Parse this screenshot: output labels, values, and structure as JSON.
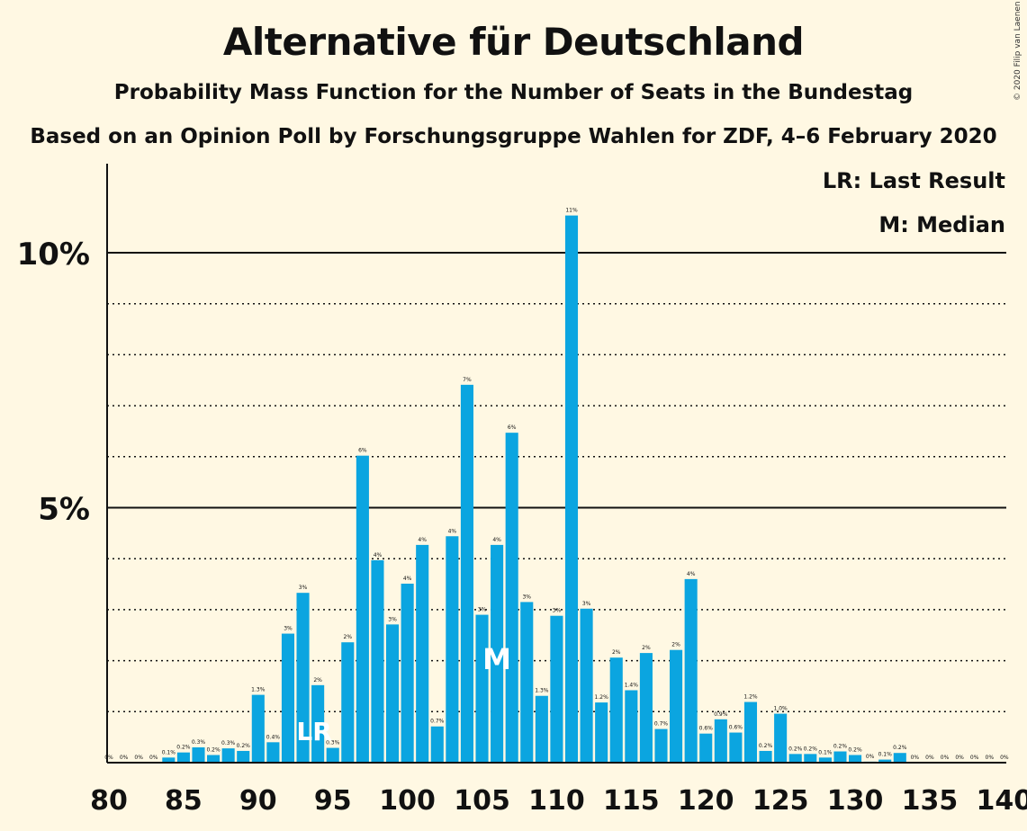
{
  "title": "Alternative für Deutschland",
  "subtitle": "Probability Mass Function for the Number of Seats in the Bundestag",
  "subtitle2": "Based on an Opinion Poll by Forschungsgruppe Wahlen for ZDF, 4–6 February 2020",
  "copyright": "© 2020 Filip van Laenen",
  "legend": {
    "last_result": "LR: Last Result",
    "median": "M: Median"
  },
  "markers": {
    "last_result": "LR",
    "median": "M"
  },
  "colors": {
    "bar": "#0BA5E0",
    "background": "#FFF8E3",
    "axis": "#111111",
    "marker": "#FFFFFF"
  },
  "chart_data": {
    "type": "bar",
    "xlim": [
      80,
      140
    ],
    "ylim": [
      0,
      11.7
    ],
    "x_ticks": [
      80,
      85,
      90,
      95,
      100,
      105,
      110,
      115,
      120,
      125,
      130,
      135,
      140
    ],
    "y_ticks": [
      {
        "value": 5,
        "label": "5%"
      },
      {
        "value": 10,
        "label": "10%"
      }
    ],
    "dotted_gridlines": [
      1,
      2,
      3,
      4,
      6,
      7,
      8,
      9
    ],
    "last_result_seat": 94,
    "median_seat": 106,
    "seats": [
      80,
      81,
      82,
      83,
      84,
      85,
      86,
      87,
      88,
      89,
      90,
      91,
      92,
      93,
      94,
      95,
      96,
      97,
      98,
      99,
      100,
      101,
      102,
      103,
      104,
      105,
      106,
      107,
      108,
      109,
      110,
      111,
      112,
      113,
      114,
      115,
      116,
      117,
      118,
      119,
      120,
      121,
      122,
      123,
      124,
      125,
      126,
      127,
      128,
      129,
      130,
      131,
      132,
      133,
      134,
      135,
      136,
      137,
      138,
      139,
      140
    ],
    "values": [
      0,
      0,
      0,
      0,
      0.1,
      0.2,
      0.3,
      0.15,
      0.28,
      0.23,
      1.33,
      0.4,
      2.53,
      3.33,
      1.52,
      0.29,
      2.36,
      6.02,
      3.97,
      2.71,
      3.51,
      4.27,
      0.71,
      4.44,
      7.41,
      2.9,
      4.27,
      6.47,
      3.15,
      1.31,
      2.88,
      10.73,
      3.02,
      1.18,
      2.06,
      1.42,
      2.15,
      0.66,
      2.21,
      3.6,
      0.57,
      0.85,
      0.59,
      1.19,
      0.23,
      0.96,
      0.17,
      0.17,
      0.1,
      0.22,
      0.15,
      0.02,
      0.06,
      0.19,
      0,
      0,
      0,
      0,
      0,
      0,
      0
    ],
    "labels": [
      "0%",
      "0%",
      "0%",
      "0%",
      "0.1%",
      "0.2%",
      "0.3%",
      "0.2%",
      "0.3%",
      "0.2%",
      "1.3%",
      "0.4%",
      "3%",
      "3%",
      "2%",
      "0.3%",
      "2%",
      "6%",
      "4%",
      "3%",
      "4%",
      "4%",
      "0.7%",
      "4%",
      "7%",
      "3%",
      "4%",
      "6%",
      "3%",
      "1.3%",
      "3%",
      "11%",
      "3%",
      "1.2%",
      "2%",
      "1.4%",
      "2%",
      "0.7%",
      "2%",
      "4%",
      "0.6%",
      "0.9%",
      "0.6%",
      "1.2%",
      "0.2%",
      "1.0%",
      "0.2%",
      "0.2%",
      "0.1%",
      "0.2%",
      "0.2%",
      "0%",
      "0.1%",
      "0.2%",
      "0%",
      "0%",
      "0%",
      "0%",
      "0%",
      "0%",
      "0%"
    ]
  }
}
